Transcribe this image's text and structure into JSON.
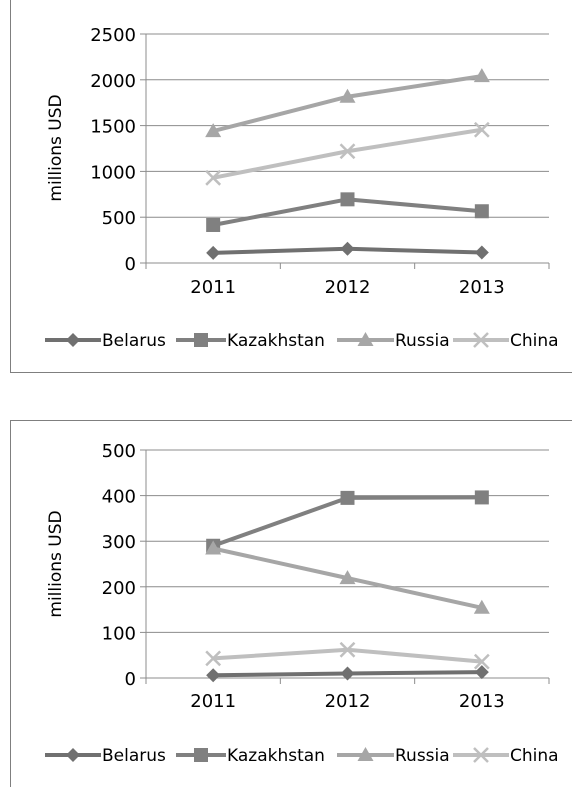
{
  "chart_data": [
    {
      "type": "line",
      "title": "",
      "xlabel": "",
      "ylabel": "millions USD",
      "categories": [
        "2011",
        "2012",
        "2013"
      ],
      "ylim": [
        0,
        2500
      ],
      "yticks": [
        0,
        500,
        1000,
        1500,
        2000,
        2500
      ],
      "grid": true,
      "legend_position": "bottom",
      "series": [
        {
          "name": "Belarus",
          "values": [
            110,
            155,
            115
          ],
          "color": "#707070",
          "marker": "diamond"
        },
        {
          "name": "Kazakhstan",
          "values": [
            415,
            695,
            565
          ],
          "color": "#808080",
          "marker": "square"
        },
        {
          "name": "Russia",
          "values": [
            1440,
            1815,
            2040
          ],
          "color": "#a6a6a6",
          "marker": "triangle"
        },
        {
          "name": "China",
          "values": [
            930,
            1220,
            1455
          ],
          "color": "#bfbfbf",
          "marker": "x"
        }
      ]
    },
    {
      "type": "line",
      "title": "",
      "xlabel": "",
      "ylabel": "millions USD",
      "categories": [
        "2011",
        "2012",
        "2013"
      ],
      "ylim": [
        0,
        500
      ],
      "yticks": [
        0,
        100,
        200,
        300,
        400,
        500
      ],
      "grid": true,
      "legend_position": "bottom",
      "series": [
        {
          "name": "Belarus",
          "values": [
            6,
            10,
            13
          ],
          "color": "#707070",
          "marker": "diamond"
        },
        {
          "name": "Kazakhstan",
          "values": [
            290,
            395,
            396
          ],
          "color": "#808080",
          "marker": "square"
        },
        {
          "name": "Russia",
          "values": [
            284,
            219,
            154
          ],
          "color": "#a6a6a6",
          "marker": "triangle"
        },
        {
          "name": "China",
          "values": [
            43,
            62,
            36
          ],
          "color": "#bfbfbf",
          "marker": "x"
        }
      ]
    }
  ]
}
